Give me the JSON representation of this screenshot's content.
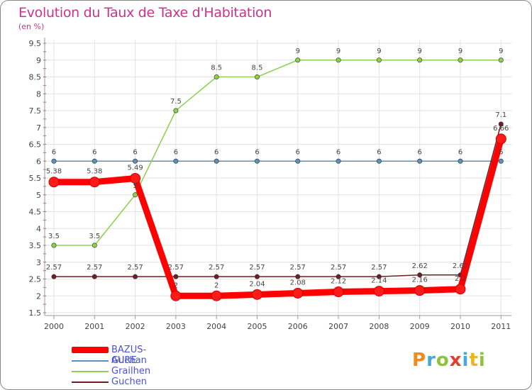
{
  "chart_data": {
    "type": "line",
    "title": "Evolution du Taux de Taxe d'Habitation",
    "unit": "(en %)",
    "ylim": [
      1.5,
      9.5
    ],
    "y_ticks": [
      "1.5",
      "2",
      "2.5",
      "3",
      "3.5",
      "4",
      "4.5",
      "5",
      "5.5",
      "6",
      "6.5",
      "7",
      "7.5",
      "8",
      "8.5",
      "9",
      "9.5"
    ],
    "categories": [
      "2000",
      "2001",
      "2002",
      "2003",
      "2004",
      "2005",
      "2006",
      "2007",
      "2008",
      "2009",
      "2010",
      "2011"
    ],
    "series": [
      {
        "name": "Guchan",
        "color": "#5a8fc6",
        "values": [
          6,
          6,
          6,
          6,
          6,
          6,
          6,
          6,
          6,
          6,
          6,
          6
        ],
        "labels": [
          "6",
          "6",
          "6",
          "6",
          "6",
          "6",
          "6",
          "6",
          "6",
          "6",
          "6",
          "6"
        ]
      },
      {
        "name": "Grailhen",
        "color": "#8dd04f",
        "values": [
          3.5,
          3.5,
          5,
          7.5,
          8.5,
          8.5,
          9,
          9,
          9,
          9,
          9,
          9
        ],
        "labels": [
          "3.5",
          "3.5",
          "5",
          "7.5",
          "8.5",
          "8.5",
          "9",
          "9",
          "9",
          "9",
          "9",
          "9"
        ]
      },
      {
        "name": "Guchen",
        "color": "#6e1f24",
        "values": [
          2.57,
          2.57,
          2.57,
          2.57,
          2.57,
          2.57,
          2.57,
          2.57,
          2.57,
          2.62,
          2.62,
          7.1
        ],
        "labels": [
          "2.57",
          "2.57",
          "2.57",
          "2.57",
          "2.57",
          "2.57",
          "2.57",
          "2.57",
          "2.57",
          "2.62",
          "2.62",
          "7.1"
        ]
      },
      {
        "name": "BAZUS-AURE",
        "color": "#ff0000",
        "values": [
          5.38,
          5.38,
          5.49,
          2,
          2,
          2.04,
          2.08,
          2.12,
          2.14,
          2.16,
          2.2,
          6.66
        ],
        "labels": [
          "5.38",
          "5.38",
          "5.49",
          "2",
          "2",
          "2.04",
          "2.08",
          "2.12",
          "2.14",
          "2.16",
          "2.2",
          "6.66"
        ]
      }
    ]
  },
  "legend": [
    {
      "name": "BAZUS-AURE",
      "color": "#ff0000"
    },
    {
      "name": "Guchan",
      "color": "#5a8fc6"
    },
    {
      "name": "Grailhen",
      "color": "#8dd04f"
    },
    {
      "name": "Guchen",
      "color": "#6e1f24"
    }
  ],
  "logo": {
    "p": "P",
    "r": "r",
    "o": "o",
    "x": "x",
    "i1": "i",
    "t": "t",
    "i2": "i"
  }
}
